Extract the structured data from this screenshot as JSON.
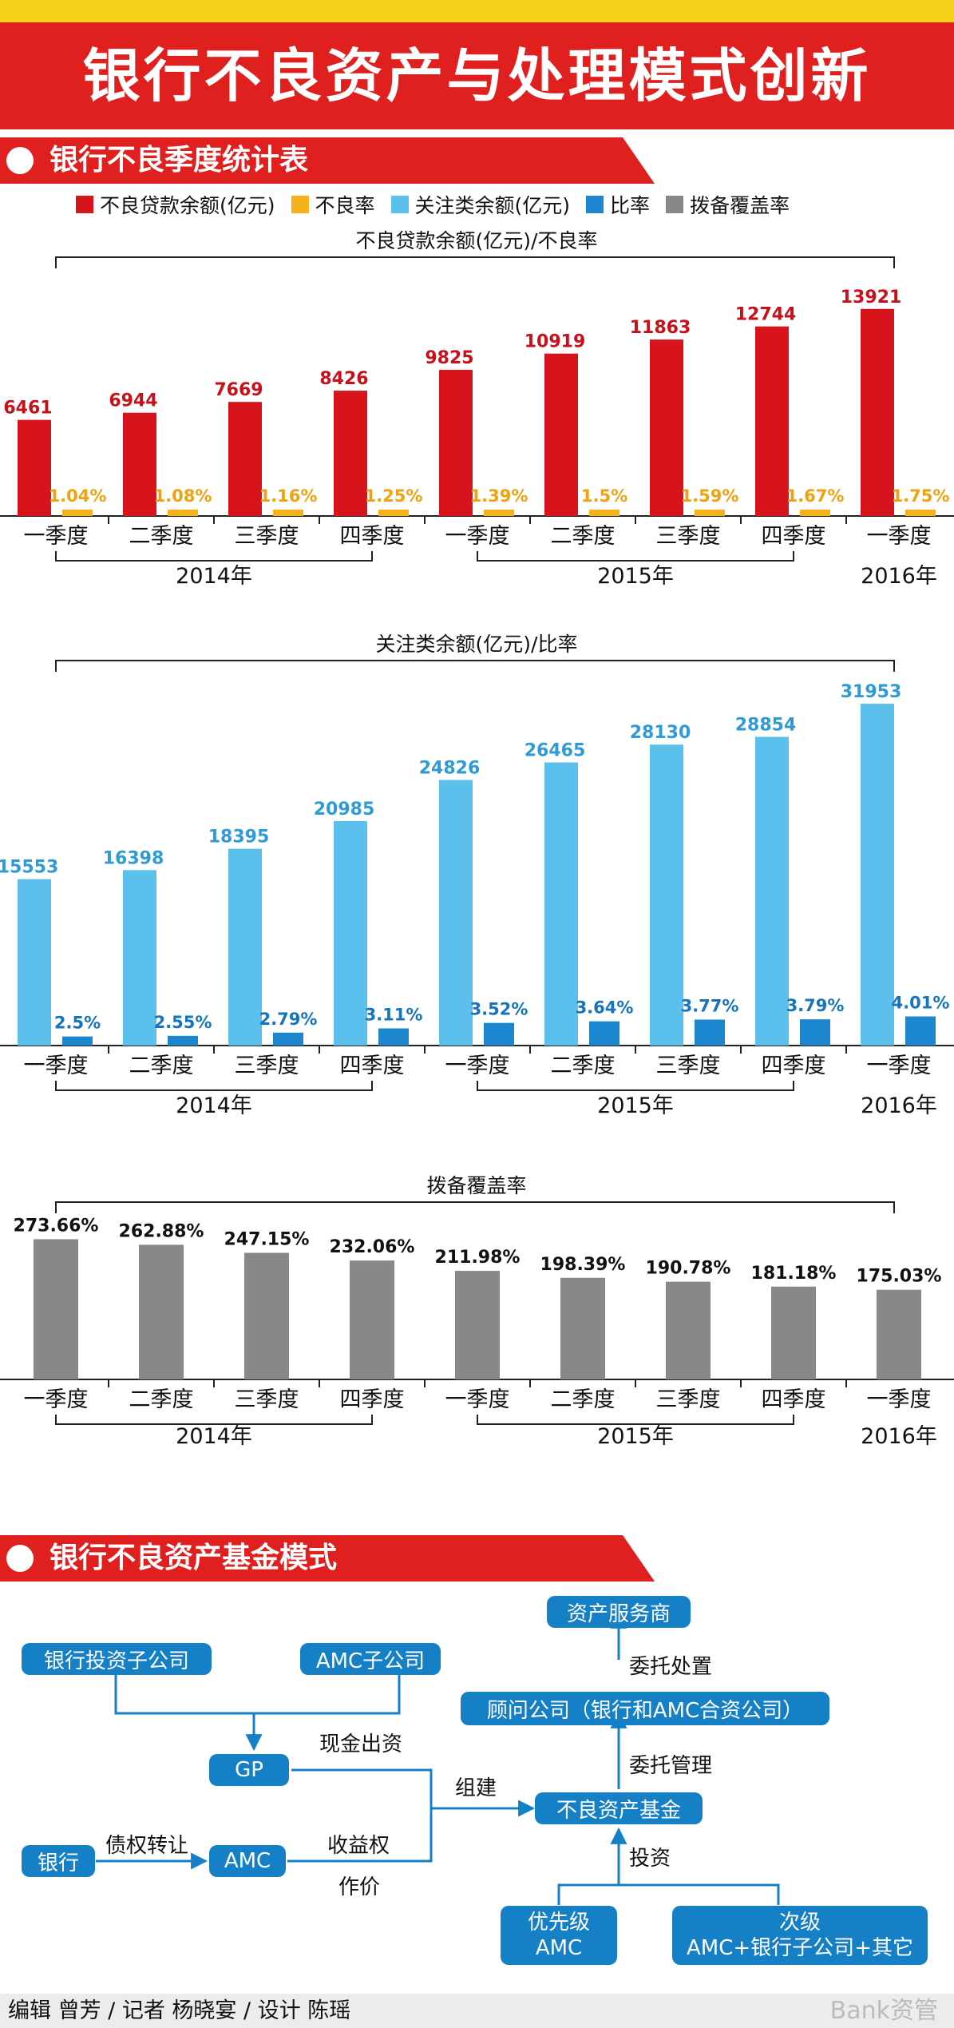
{
  "header": {
    "title": "银行不良资产与处理模式创新"
  },
  "section1": {
    "title": "银行不良季度统计表"
  },
  "legend": [
    {
      "label": "不良贷款余额(亿元)",
      "color": "#d7141b"
    },
    {
      "label": "不良率",
      "color": "#f5b21b"
    },
    {
      "label": "关注类余额(亿元)",
      "color": "#5bc0eb"
    },
    {
      "label": "比率",
      "color": "#1c86cf"
    },
    {
      "label": "拨备覆盖率",
      "color": "#888888"
    }
  ],
  "chart_data": [
    {
      "type": "bar",
      "title": "不良贷款余额(亿元)/不良率",
      "categories": [
        "一季度",
        "二季度",
        "三季度",
        "四季度",
        "一季度",
        "二季度",
        "三季度",
        "四季度",
        "一季度"
      ],
      "groups": [
        {
          "label": "2014年",
          "count": 4
        },
        {
          "label": "2015年",
          "count": 4
        },
        {
          "label": "2016年",
          "count": 1
        }
      ],
      "series": [
        {
          "name": "不良贷款余额(亿元)",
          "values": [
            6461,
            6944,
            7669,
            8426,
            9825,
            10919,
            11863,
            12744,
            13921
          ],
          "labels": [
            "6461",
            "6944",
            "7669",
            "8426",
            "9825",
            "10919",
            "11863",
            "12744",
            "13921"
          ],
          "color": "#d7141b",
          "label_color": "#c8101a"
        },
        {
          "name": "不良率",
          "values": [
            1.04,
            1.08,
            1.16,
            1.25,
            1.39,
            1.5,
            1.59,
            1.67,
            1.75
          ],
          "labels": [
            "1.04%",
            "1.08%",
            "1.16%",
            "1.25%",
            "1.39%",
            "1.5%",
            "1.59%",
            "1.67%",
            "1.75%"
          ],
          "color": "#f5b21b",
          "label_color": "#f2a10e"
        }
      ]
    },
    {
      "type": "bar",
      "title": "关注类余额(亿元)/比率",
      "categories": [
        "一季度",
        "二季度",
        "三季度",
        "四季度",
        "一季度",
        "二季度",
        "三季度",
        "四季度",
        "一季度"
      ],
      "groups": [
        {
          "label": "2014年",
          "count": 4
        },
        {
          "label": "2015年",
          "count": 4
        },
        {
          "label": "2016年",
          "count": 1
        }
      ],
      "series": [
        {
          "name": "关注类余额(亿元)",
          "values": [
            15553,
            16398,
            18395,
            20985,
            24826,
            26465,
            28130,
            28854,
            31953
          ],
          "labels": [
            "15553",
            "16398",
            "18395",
            "20985",
            "24826",
            "26465",
            "28130",
            "28854",
            "31953"
          ],
          "color": "#5bc0eb",
          "label_color": "#2e9bd6"
        },
        {
          "name": "比率",
          "values": [
            2.5,
            2.55,
            2.79,
            3.11,
            3.52,
            3.64,
            3.77,
            3.79,
            4.01
          ],
          "labels": [
            "2.5%",
            "2.55%",
            "2.79%",
            "3.11%",
            "3.52%",
            "3.64%",
            "3.77%",
            "3.79%",
            "4.01%"
          ],
          "color": "#1c86cf",
          "label_color": "#1474bd"
        }
      ]
    },
    {
      "type": "bar",
      "title": "拨备覆盖率",
      "categories": [
        "一季度",
        "二季度",
        "三季度",
        "四季度",
        "一季度",
        "二季度",
        "三季度",
        "四季度",
        "一季度"
      ],
      "groups": [
        {
          "label": "2014年",
          "count": 4
        },
        {
          "label": "2015年",
          "count": 4
        },
        {
          "label": "2016年",
          "count": 1
        }
      ],
      "series": [
        {
          "name": "拨备覆盖率",
          "values": [
            273.66,
            262.88,
            247.15,
            232.06,
            211.98,
            198.39,
            190.78,
            181.18,
            175.03
          ],
          "labels": [
            "273.66%",
            "262.88%",
            "247.15%",
            "232.06%",
            "211.98%",
            "198.39%",
            "190.78%",
            "181.18%",
            "175.03%"
          ],
          "color": "#888888",
          "label_color": "#111111"
        }
      ]
    }
  ],
  "section2": {
    "title": "银行不良资产基金模式"
  },
  "flow": {
    "boxes": {
      "service": "资产服务商",
      "bank_sub": "银行投资子公司",
      "amc_sub": "AMC子公司",
      "advisor": "顾问公司（银行和AMC合资公司）",
      "gp": "GP",
      "fund": "不良资产基金",
      "bank": "银行",
      "amc": "AMC",
      "senior_1": "优先级",
      "senior_2": "AMC",
      "junior_1": "次级",
      "junior_2": "AMC+银行子公司+其它"
    },
    "labels": {
      "entrust_dispose": "委托处置",
      "cash": "现金出资",
      "build": "组建",
      "entrust_manage": "委托管理",
      "transfer": "债权转让",
      "income_1": "收益权",
      "income_2": "作价",
      "invest": "投资"
    }
  },
  "footer": {
    "credits": "编辑 曾芳 / 记者 杨晓宴 / 设计 陈瑶",
    "watermark": "Bank资管"
  }
}
